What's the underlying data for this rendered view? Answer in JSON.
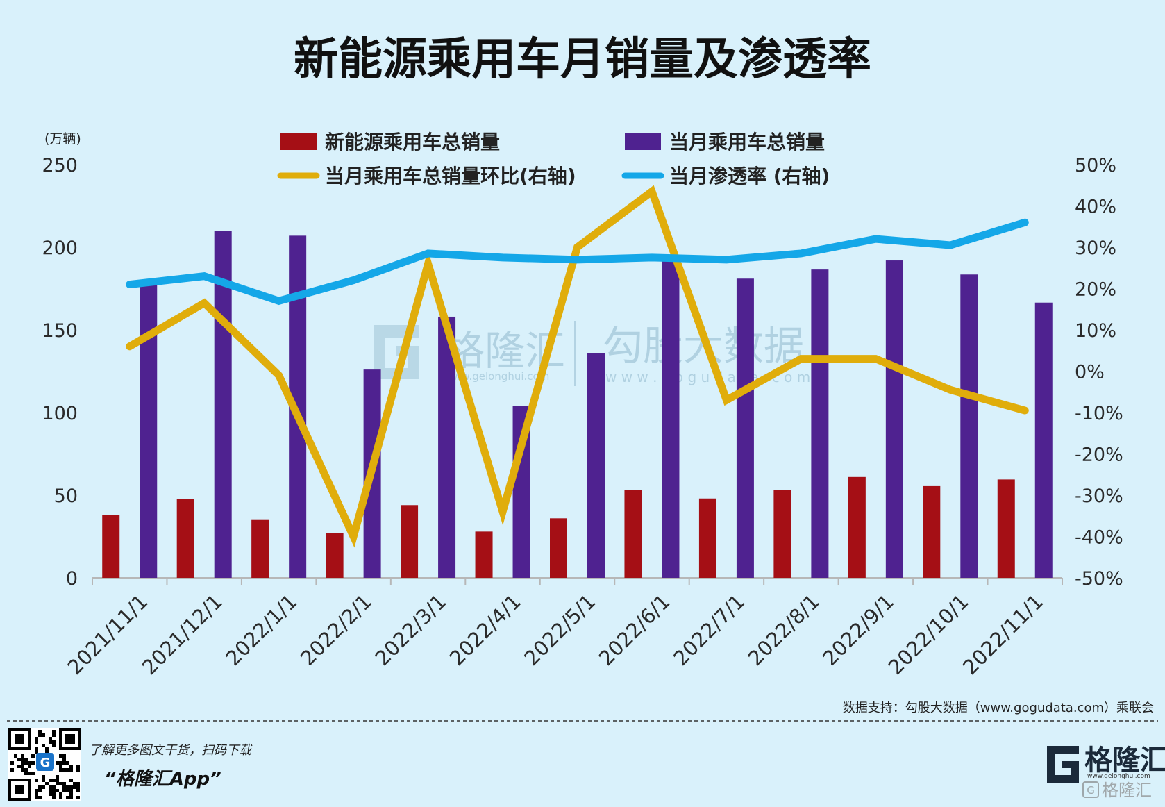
{
  "header": {
    "title": "新能源乘用车月销量及渗透率"
  },
  "axes": {
    "left_unit": "(万辆)",
    "left_ticks": [
      "250",
      "200",
      "150",
      "100",
      "50",
      "0"
    ],
    "right_ticks": [
      "50%",
      "40%",
      "30%",
      "20%",
      "10%",
      "0%",
      "-10%",
      "-20%",
      "-30%",
      "-40%",
      "-50%"
    ]
  },
  "legend": {
    "nev_sales": "新能源乘用车总销量",
    "total_sales": "当月乘用车总销量",
    "mom": "当月乘用车总销量环比(右轴",
    "mom_close": ")",
    "penetration": "当月渗透率 (右轴)"
  },
  "watermark": {
    "brand1": "格隆汇",
    "url1": "www.gelonghui.com",
    "brand2": "勾股大数据",
    "url2": "w w w . g o g u d a t a . c o m"
  },
  "source": "数据支持：勾股大数据（www.gogudata.com）乘联会",
  "footer": {
    "promo_line": "了解更多图文干货，扫码下载",
    "app_name": "“格隆汇App”",
    "logo_text": "格隆汇",
    "logo_url": "www.gelonghui.com",
    "corner_mark": "格隆汇"
  },
  "colors": {
    "nev_bar": "#a50f15",
    "total_bar": "#4f2290",
    "mom_line": "#e0ad0b",
    "penetration_line": "#14a7e8",
    "background": "#d9f1fb"
  },
  "chart_data": {
    "type": "bar",
    "title": "新能源乘用车月销量及渗透率",
    "categories": [
      "2021/11/1",
      "2021/12/1",
      "2022/1/1",
      "2022/2/1",
      "2022/3/1",
      "2022/4/1",
      "2022/5/1",
      "2022/6/1",
      "2022/7/1",
      "2022/8/1",
      "2022/9/1",
      "2022/10/1",
      "2022/11/1"
    ],
    "ylabel": "(万辆)",
    "ylim": [
      0,
      250
    ],
    "y2lim": [
      -50,
      50
    ],
    "y2_unit": "%",
    "grid": false,
    "legend_position": "top",
    "series": [
      {
        "name": "新能源乘用车总销量",
        "axis": "left",
        "kind": "bar",
        "values": [
          38,
          47.5,
          35,
          27,
          44,
          28,
          36,
          53,
          48,
          53,
          61,
          55.5,
          59.5
        ]
      },
      {
        "name": "当月乘用车总销量",
        "axis": "left",
        "kind": "bar",
        "values": [
          180,
          210,
          207,
          126,
          158,
          104,
          136,
          192,
          181,
          186.5,
          192,
          183.5,
          166.5
        ]
      },
      {
        "name": "当月乘用车总销量环比(右轴)",
        "axis": "right",
        "kind": "line",
        "values": [
          6,
          16.5,
          -1,
          -40,
          26,
          -34,
          30,
          43.5,
          -7,
          3,
          3,
          -4.5,
          -9.5
        ]
      },
      {
        "name": "当月渗透率 (右轴)",
        "axis": "right",
        "kind": "line",
        "values": [
          21,
          23,
          17,
          22,
          28.5,
          27.5,
          27,
          27.5,
          27,
          28.5,
          32,
          30.5,
          36
        ]
      }
    ]
  }
}
